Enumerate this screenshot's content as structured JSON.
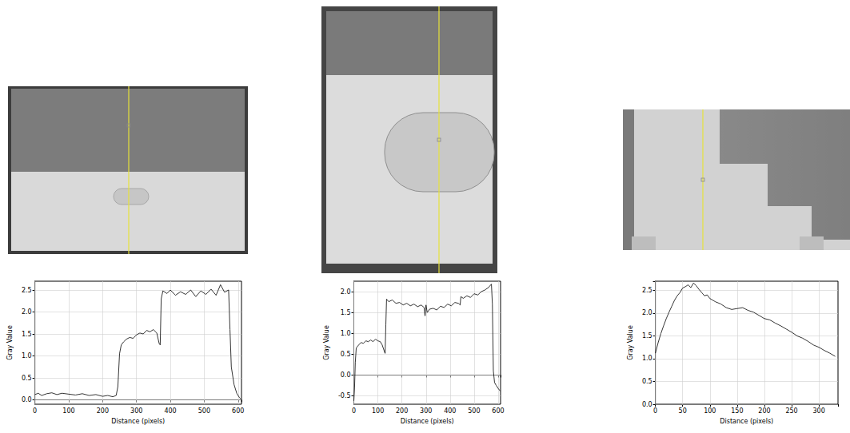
{
  "chart_data": [
    {
      "type": "line",
      "x_label": "Distance (pixels)",
      "y_label": "Gray Value",
      "color": "#000000",
      "grid": true,
      "xlim": [
        0,
        610
      ],
      "ylim": [
        -0.1,
        2.7
      ],
      "xticks": [
        0,
        100,
        200,
        300,
        400,
        500,
        600
      ],
      "yticks": [
        {
          "value": 0,
          "label": "0.0"
        },
        0.5,
        {
          "value": 1,
          "label": "1.0"
        },
        1.5,
        {
          "value": 2,
          "label": "2.0"
        },
        2.5
      ],
      "x": [
        0,
        10,
        20,
        35,
        50,
        65,
        80,
        100,
        120,
        140,
        160,
        180,
        200,
        215,
        230,
        240,
        245,
        250,
        255,
        262,
        270,
        280,
        290,
        300,
        310,
        320,
        330,
        340,
        350,
        360,
        367,
        370,
        373,
        378,
        390,
        400,
        415,
        430,
        445,
        460,
        475,
        490,
        505,
        520,
        535,
        548,
        560,
        572,
        576,
        580,
        588,
        596,
        604,
        608
      ],
      "values": [
        0.12,
        0.15,
        0.1,
        0.14,
        0.16,
        0.12,
        0.15,
        0.13,
        0.11,
        0.14,
        0.1,
        0.12,
        0.08,
        0.1,
        0.07,
        0.1,
        0.3,
        1.05,
        1.25,
        1.32,
        1.38,
        1.42,
        1.4,
        1.48,
        1.52,
        1.5,
        1.58,
        1.55,
        1.6,
        1.52,
        1.28,
        1.25,
        2.3,
        2.48,
        2.42,
        2.5,
        2.38,
        2.46,
        2.4,
        2.5,
        2.35,
        2.48,
        2.4,
        2.52,
        2.38,
        2.62,
        2.45,
        2.5,
        1.6,
        0.75,
        0.35,
        0.15,
        0.05,
        0.02
      ]
    },
    {
      "type": "line",
      "x_label": "Distance (pixels)",
      "y_label": "Gray Value",
      "color": "#000000",
      "grid": true,
      "xlim": [
        0,
        610
      ],
      "ylim": [
        -0.7,
        2.25
      ],
      "xticks": [
        0,
        100,
        200,
        300,
        400,
        500,
        600
      ],
      "yticks": [
        -0.5,
        {
          "value": 0,
          "label": "0.0"
        },
        0.5,
        {
          "value": 1,
          "label": "1.0"
        },
        1.5,
        {
          "value": 2,
          "label": "2.0"
        }
      ],
      "x": [
        0,
        3,
        6,
        10,
        20,
        30,
        40,
        50,
        60,
        70,
        80,
        90,
        100,
        110,
        118,
        125,
        130,
        133,
        136,
        145,
        160,
        175,
        190,
        205,
        220,
        235,
        250,
        265,
        280,
        292,
        296,
        300,
        305,
        315,
        330,
        345,
        360,
        375,
        390,
        405,
        420,
        435,
        442,
        445,
        455,
        470,
        485,
        500,
        515,
        530,
        545,
        560,
        572,
        576,
        580,
        585,
        592,
        600,
        608
      ],
      "values": [
        -0.62,
        -0.3,
        0.3,
        0.65,
        0.72,
        0.78,
        0.76,
        0.82,
        0.8,
        0.84,
        0.8,
        0.86,
        0.82,
        0.8,
        0.72,
        0.6,
        0.52,
        1.2,
        1.82,
        1.76,
        1.8,
        1.72,
        1.74,
        1.68,
        1.72,
        1.66,
        1.7,
        1.64,
        1.68,
        1.62,
        1.42,
        1.68,
        1.5,
        1.58,
        1.6,
        1.56,
        1.65,
        1.62,
        1.7,
        1.66,
        1.74,
        1.72,
        1.68,
        1.88,
        1.84,
        1.9,
        1.86,
        1.95,
        1.92,
        2.0,
        2.04,
        2.1,
        2.18,
        1.7,
        0.1,
        -0.18,
        -0.25,
        -0.32,
        -0.38
      ]
    },
    {
      "type": "line",
      "x_label": "Distance (pixels)",
      "y_label": "Gray Value",
      "color": "#000000",
      "grid": true,
      "xlim": [
        0,
        335
      ],
      "ylim": [
        0,
        2.7
      ],
      "xticks": [
        0,
        50,
        100,
        150,
        200,
        250,
        300
      ],
      "yticks": [
        {
          "value": 0,
          "label": "0.0"
        },
        0.5,
        {
          "value": 1,
          "label": "1.0"
        },
        1.5,
        {
          "value": 2,
          "label": "2.0"
        },
        2.5
      ],
      "x": [
        0,
        5,
        10,
        15,
        20,
        25,
        30,
        35,
        40,
        45,
        50,
        55,
        60,
        65,
        70,
        75,
        80,
        85,
        90,
        95,
        100,
        110,
        120,
        130,
        140,
        150,
        160,
        170,
        180,
        190,
        200,
        210,
        220,
        230,
        240,
        250,
        260,
        270,
        280,
        290,
        300,
        310,
        320,
        330
      ],
      "values": [
        1.12,
        1.35,
        1.55,
        1.72,
        1.88,
        2.02,
        2.15,
        2.28,
        2.38,
        2.45,
        2.55,
        2.58,
        2.62,
        2.56,
        2.66,
        2.6,
        2.52,
        2.45,
        2.38,
        2.4,
        2.32,
        2.25,
        2.2,
        2.12,
        2.08,
        2.1,
        2.12,
        2.06,
        2.02,
        1.95,
        1.88,
        1.85,
        1.78,
        1.72,
        1.65,
        1.58,
        1.5,
        1.45,
        1.38,
        1.3,
        1.25,
        1.18,
        1.12,
        1.05
      ]
    }
  ]
}
